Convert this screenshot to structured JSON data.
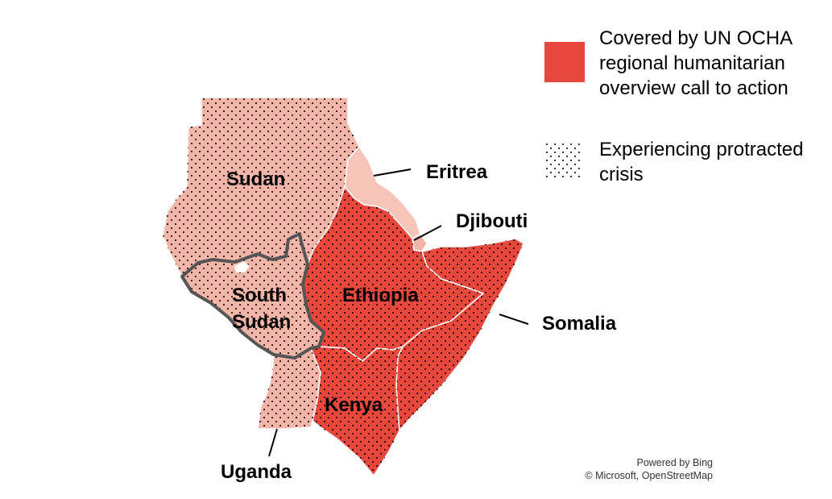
{
  "colors": {
    "covered": "#E8473B",
    "not_covered": "#F4B5A9",
    "eritrea": "#F6C4B8",
    "protracted_outline": "#555555",
    "dots": "#000000"
  },
  "map": {
    "countries": [
      {
        "name": "Sudan",
        "covered": false,
        "protracted": true
      },
      {
        "name": "South Sudan",
        "covered": false,
        "protracted": true
      },
      {
        "name": "Eritrea",
        "covered": false,
        "protracted": false
      },
      {
        "name": "Djibouti",
        "covered": false,
        "protracted": false
      },
      {
        "name": "Ethiopia",
        "covered": true,
        "protracted": true
      },
      {
        "name": "Somalia",
        "covered": true,
        "protracted": true
      },
      {
        "name": "Kenya",
        "covered": true,
        "protracted": true
      },
      {
        "name": "Uganda",
        "covered": false,
        "protracted": true
      }
    ],
    "labels": {
      "sudan": "Sudan",
      "south_sudan_line1": "South",
      "south_sudan_line2": "Sudan",
      "ethiopia": "Ethiopia",
      "kenya": "Kenya",
      "eritrea": "Eritrea",
      "djibouti": "Djibouti",
      "somalia": "Somalia",
      "uganda": "Uganda"
    }
  },
  "legend": {
    "covered_text": "Covered by UN OCHA regional humanitarian overview call to action",
    "protracted_text": "Experiencing protracted crisis"
  },
  "attribution": {
    "line1": "Powered by Bing",
    "line2": "© Microsoft, OpenStreetMap"
  }
}
